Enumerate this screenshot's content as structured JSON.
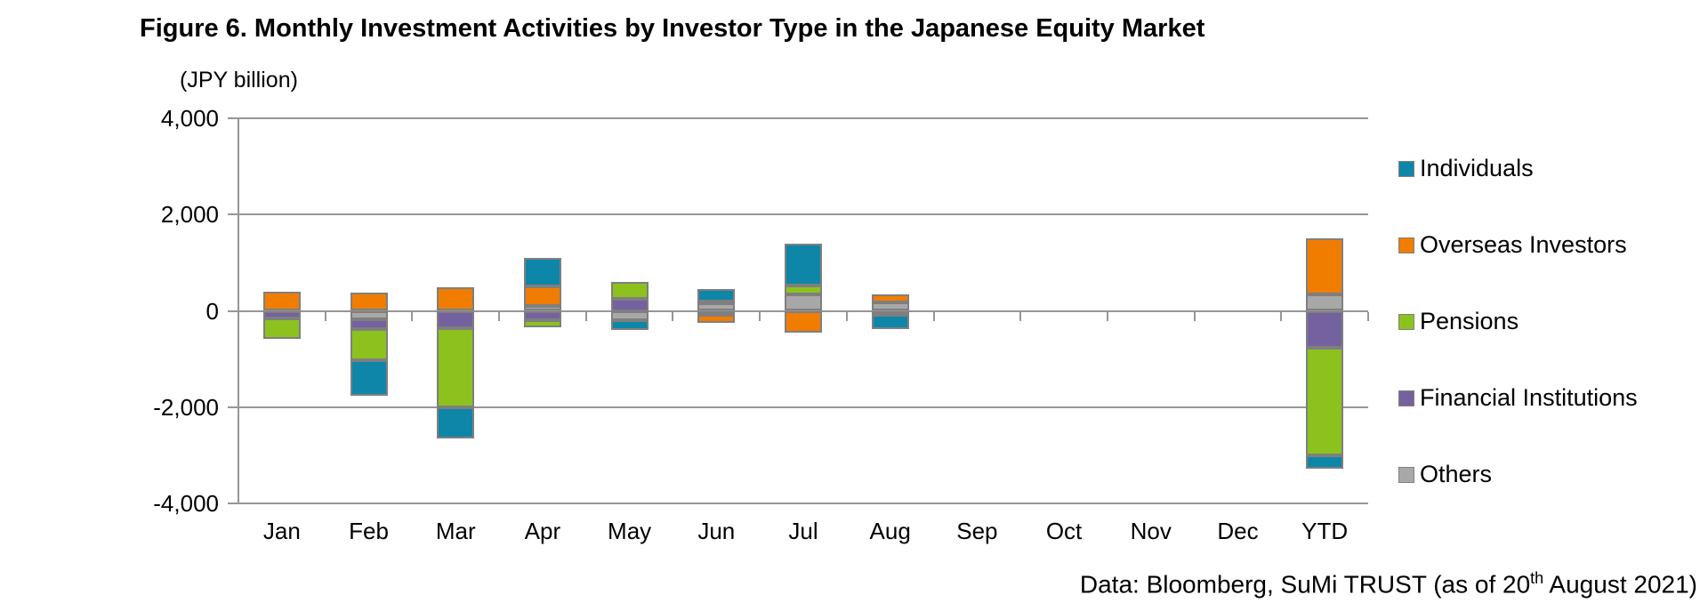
{
  "figure": {
    "title": "Figure 6. Monthly Investment Activities by Investor Type in the Japanese Equity Market",
    "unit_label": "(JPY billion)",
    "source_note": {
      "prefix": "Data: Bloomberg, SuMi TRUST (as of 20",
      "superscript": "th",
      "suffix": " August 2021)"
    }
  },
  "chart_data": {
    "type": "bar",
    "stacked": true,
    "title": "Figure 6. Monthly Investment Activities by Investor Type in the Japanese Equity Market",
    "xlabel": "",
    "ylabel": "(JPY billion)",
    "categories": [
      "Jan",
      "Feb",
      "Mar",
      "Apr",
      "May",
      "Jun",
      "Jul",
      "Aug",
      "Sep",
      "Oct",
      "Nov",
      "Dec",
      "YTD"
    ],
    "series": [
      {
        "name": "Individuals",
        "color": "#0E86A8",
        "values": [
          0,
          -750,
          -650,
          600,
          -200,
          260,
          870,
          -300,
          0,
          0,
          0,
          0,
          -280
        ]
      },
      {
        "name": "Overseas Investors",
        "color": "#F07D00",
        "values": [
          400,
          370,
          490,
          400,
          0,
          -170,
          -450,
          170,
          0,
          0,
          0,
          0,
          1150
        ]
      },
      {
        "name": "Pensions",
        "color": "#8DC21E",
        "values": [
          -430,
          -650,
          -1650,
          -150,
          350,
          50,
          170,
          0,
          0,
          0,
          0,
          0,
          -2240
        ]
      },
      {
        "name": "Financial Institutions",
        "color": "#74619F",
        "values": [
          -150,
          -200,
          -360,
          -200,
          250,
          -80,
          0,
          -80,
          0,
          0,
          0,
          0,
          -760
        ]
      },
      {
        "name": "Others",
        "color": "#A8A8A8",
        "values": [
          0,
          -170,
          0,
          100,
          -190,
          150,
          350,
          170,
          0,
          0,
          0,
          0,
          350
        ]
      }
    ],
    "stack_order_from_axis": [
      "Others",
      "Financial Institutions",
      "Pensions",
      "Overseas Investors",
      "Individuals"
    ],
    "ylim": [
      -4000,
      4000
    ],
    "y_ticks": [
      {
        "label": "4,000",
        "value": 4000
      },
      {
        "label": "2,000",
        "value": 2000
      },
      {
        "label": "0",
        "value": 0
      },
      {
        "label": "-2,000",
        "value": -2000
      },
      {
        "label": "-4,000",
        "value": -4000
      }
    ],
    "grid": true,
    "legend_position": "right"
  },
  "colors": {
    "grid": "#969696",
    "bar_border": "#7F7F7F",
    "text": "#000000"
  }
}
